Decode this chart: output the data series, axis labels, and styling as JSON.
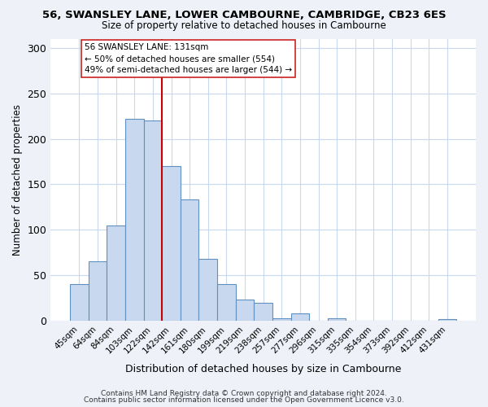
{
  "title": "56, SWANSLEY LANE, LOWER CAMBOURNE, CAMBRIDGE, CB23 6ES",
  "subtitle": "Size of property relative to detached houses in Cambourne",
  "xlabel": "Distribution of detached houses by size in Cambourne",
  "ylabel": "Number of detached properties",
  "bar_labels": [
    "45sqm",
    "64sqm",
    "84sqm",
    "103sqm",
    "122sqm",
    "142sqm",
    "161sqm",
    "180sqm",
    "199sqm",
    "219sqm",
    "238sqm",
    "257sqm",
    "277sqm",
    "296sqm",
    "315sqm",
    "335sqm",
    "354sqm",
    "373sqm",
    "392sqm",
    "412sqm",
    "431sqm"
  ],
  "bar_values": [
    40,
    65,
    105,
    222,
    220,
    170,
    133,
    68,
    40,
    23,
    20,
    3,
    8,
    0,
    3,
    0,
    0,
    0,
    0,
    0,
    2
  ],
  "bar_color": "#c8d8ee",
  "bar_edge_color": "#6090c0",
  "vline_x": 5,
  "vline_color": "#cc0000",
  "annotation_title": "56 SWANSLEY LANE: 131sqm",
  "annotation_line1": "← 50% of detached houses are smaller (554)",
  "annotation_line2": "49% of semi-detached houses are larger (544) →",
  "ylim": [
    0,
    310
  ],
  "yticks": [
    0,
    50,
    100,
    150,
    200,
    250,
    300
  ],
  "footnote1": "Contains HM Land Registry data © Crown copyright and database right 2024.",
  "footnote2": "Contains public sector information licensed under the Open Government Licence v3.0.",
  "bg_color": "#eef2f8",
  "plot_bg_color": "#ffffff",
  "grid_color": "#c8d8ee"
}
